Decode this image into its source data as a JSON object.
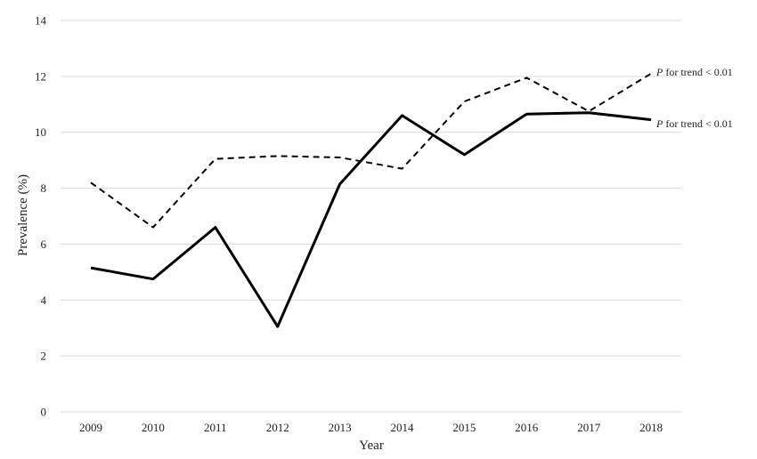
{
  "chart_data": {
    "type": "line",
    "title": "",
    "xlabel": "Year",
    "ylabel": "Prevalence (%)",
    "categories": [
      "2009",
      "2010",
      "2011",
      "2012",
      "2013",
      "2014",
      "2015",
      "2016",
      "2017",
      "2018"
    ],
    "ylim": [
      0,
      14
    ],
    "yticks": [
      "0",
      "2",
      "4",
      "6",
      "8",
      "10",
      "12",
      "14"
    ],
    "grid": true,
    "series": [
      {
        "style": "dashed",
        "color": "#000000",
        "values": [
          8.2,
          6.6,
          9.05,
          9.15,
          9.1,
          8.7,
          11.1,
          11.95,
          10.75,
          12.1
        ]
      },
      {
        "style": "solid",
        "color": "#000000",
        "values": [
          5.15,
          4.75,
          6.6,
          3.05,
          8.15,
          10.6,
          9.2,
          10.65,
          10.7,
          10.45
        ]
      }
    ],
    "annotations": [
      {
        "italic": "P",
        "text": " for trend < 0.01"
      },
      {
        "italic": "P",
        "text": " for trend < 0.01"
      }
    ]
  }
}
